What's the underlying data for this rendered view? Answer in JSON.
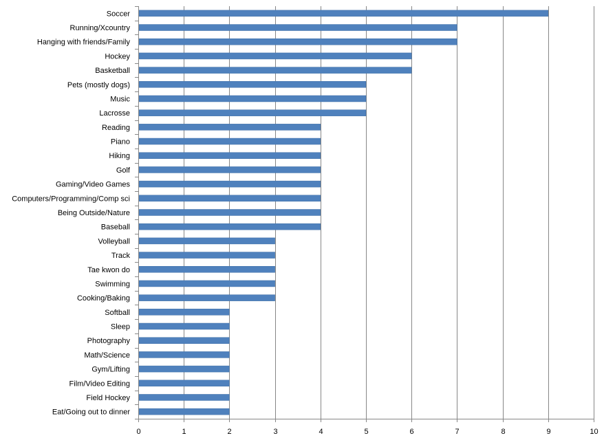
{
  "chart_data": {
    "type": "bar",
    "orientation": "horizontal",
    "categories": [
      "Soccer",
      "Running/Xcountry",
      "Hanging with friends/Family",
      "Hockey",
      "Basketball",
      "Pets (mostly dogs)",
      "Music",
      "Lacrosse",
      "Reading",
      "Piano",
      "Hiking",
      "Golf",
      "Gaming/Video Games",
      "Computers/Programming/Comp sci",
      "Being Outside/Nature",
      "Baseball",
      "Volleyball",
      "Track",
      "Tae kwon do",
      "Swimming",
      "Cooking/Baking",
      "Softball",
      "Sleep",
      "Photography",
      "Math/Science",
      "Gym/Lifting",
      "Film/Video Editing",
      "Field Hockey",
      "Eat/Going out to dinner"
    ],
    "values": [
      9,
      7,
      7,
      6,
      6,
      5,
      5,
      5,
      4,
      4,
      4,
      4,
      4,
      4,
      4,
      4,
      3,
      3,
      3,
      3,
      3,
      2,
      2,
      2,
      2,
      2,
      2,
      2,
      2
    ],
    "xlim": [
      0,
      10
    ],
    "xticks": [
      "0",
      "1",
      "2",
      "3",
      "4",
      "5",
      "6",
      "7",
      "8",
      "9",
      "10"
    ],
    "title": "",
    "xlabel": "",
    "ylabel": "",
    "grid": "vertical major gridlines",
    "legend": "none",
    "bar_color": "#4f81bd"
  }
}
